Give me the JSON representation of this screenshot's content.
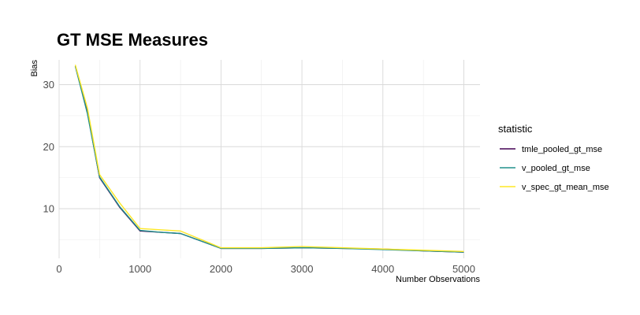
{
  "chart_data": {
    "type": "line",
    "title": "GT MSE Measures",
    "xlabel": "Number Observations",
    "ylabel": "Bias",
    "xlim": [
      0,
      5200
    ],
    "ylim": [
      2.0,
      34.0
    ],
    "x_ticks": [
      0,
      1000,
      2000,
      3000,
      4000,
      5000
    ],
    "x_tick_labels": [
      "0",
      "1000",
      "2000",
      "3000",
      "4000",
      "5000"
    ],
    "y_ticks": [
      10,
      20,
      30
    ],
    "y_tick_labels": [
      "10",
      "20",
      "30"
    ],
    "x_minor_ticks": [
      500,
      1500,
      2500,
      3500,
      4500
    ],
    "y_minor_ticks": [
      5,
      15,
      25
    ],
    "grid": true,
    "legend_title": "statistic",
    "legend_position": "right",
    "x": [
      200,
      350,
      500,
      750,
      1000,
      1250,
      1500,
      2000,
      2500,
      3000,
      3500,
      4000,
      4500,
      5000
    ],
    "series": [
      {
        "name": "tmle_pooled_gt_mse",
        "color": "#440154",
        "values": [
          33.0,
          25.5,
          15.0,
          10.2,
          6.4,
          6.2,
          6.0,
          3.6,
          3.6,
          3.7,
          3.6,
          3.5,
          3.2,
          3.0
        ]
      },
      {
        "name": "v_pooled_gt_mse",
        "color": "#21908C",
        "values": [
          33.0,
          25.3,
          15.1,
          10.3,
          6.5,
          6.2,
          6.0,
          3.6,
          3.6,
          3.7,
          3.6,
          3.4,
          3.2,
          3.0
        ]
      },
      {
        "name": "v_spec_gt_mean_mse",
        "color": "#FDE725",
        "values": [
          33.2,
          26.2,
          15.5,
          10.9,
          6.8,
          6.6,
          6.4,
          3.7,
          3.7,
          3.9,
          3.7,
          3.5,
          3.3,
          3.1
        ]
      }
    ]
  }
}
